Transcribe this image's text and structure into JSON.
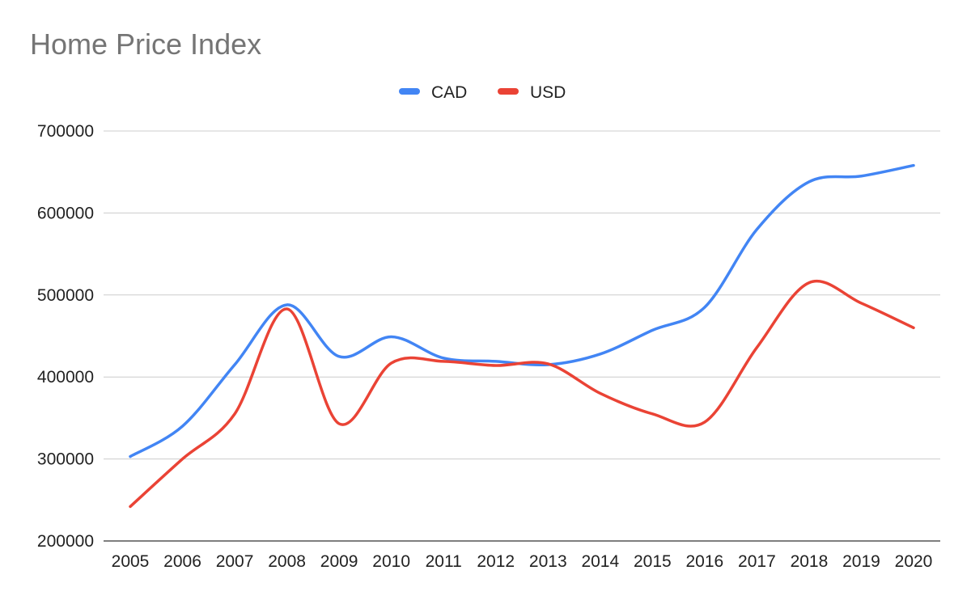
{
  "chart_data": {
    "type": "line",
    "title": "Home Price Index",
    "xlabel": "",
    "ylabel": "",
    "categories": [
      "2005",
      "2006",
      "2007",
      "2008",
      "2009",
      "2010",
      "2011",
      "2012",
      "2013",
      "2014",
      "2015",
      "2016",
      "2017",
      "2018",
      "2019",
      "2020"
    ],
    "ylim": [
      200000,
      700000
    ],
    "yticks": [
      200000,
      300000,
      400000,
      500000,
      600000,
      700000
    ],
    "ytick_labels": [
      "200000",
      "300000",
      "400000",
      "500000",
      "600000",
      "700000"
    ],
    "grid": true,
    "legend_position": "top-center",
    "smooth": true,
    "series": [
      {
        "name": "CAD",
        "color": "#4285f4",
        "values": [
          303000,
          340000,
          415000,
          488000,
          425000,
          449000,
          423000,
          419000,
          415000,
          428000,
          457000,
          485000,
          580000,
          638000,
          645000,
          658000
        ]
      },
      {
        "name": "USD",
        "color": "#ea4335",
        "values": [
          242000,
          300000,
          355000,
          483000,
          343000,
          417000,
          419000,
          414000,
          416000,
          380000,
          355000,
          345000,
          436000,
          515000,
          490000,
          460000
        ]
      }
    ]
  }
}
